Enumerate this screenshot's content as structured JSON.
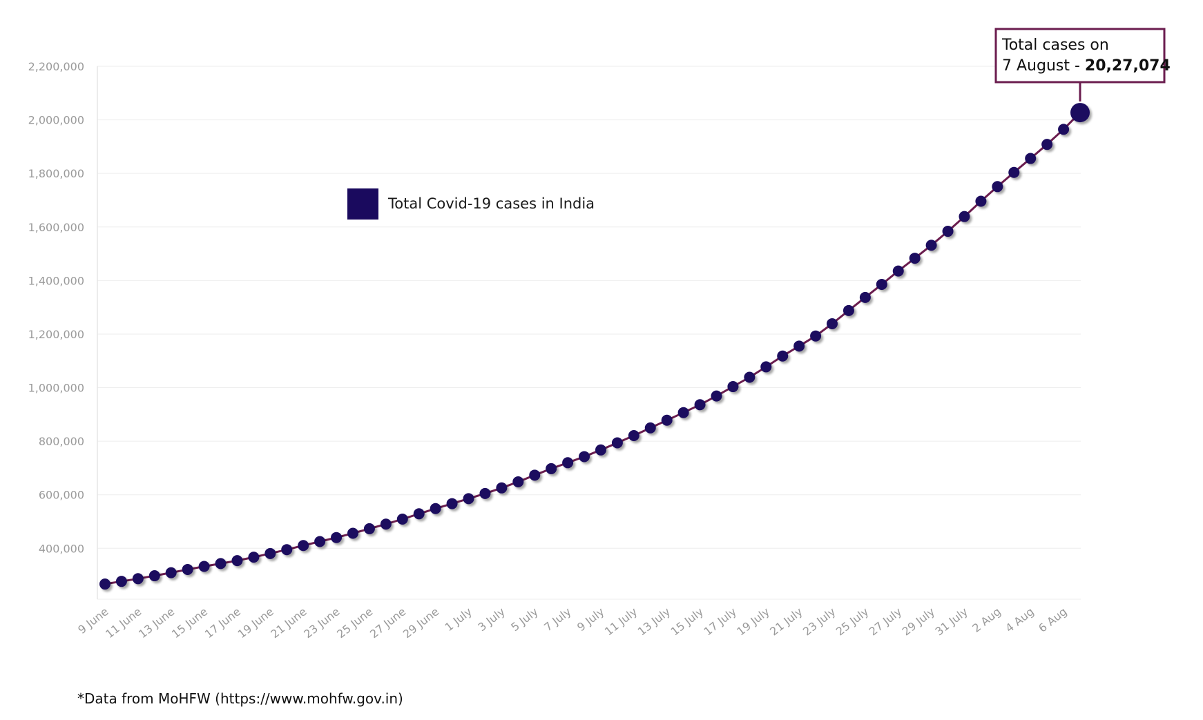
{
  "chart_data": {
    "type": "line",
    "title": "",
    "xlabel": "",
    "ylabel": "",
    "series": [
      {
        "name": "Total Covid-19 cases in India",
        "values": [
          266598,
          276583,
          286579,
          297535,
          308993,
          320922,
          332424,
          343091,
          354065,
          366946,
          380532,
          395048,
          410461,
          425282,
          440215,
          456183,
          473105,
          490401,
          508953,
          528859,
          548318,
          566840,
          585493,
          604641,
          625544,
          648315,
          673165,
          697413,
          719665,
          742417,
          767296,
          793802,
          820916,
          849553,
          878254,
          906752,
          936181,
          968876,
          1003832,
          1038716,
          1077618,
          1118043,
          1155191,
          1192915,
          1238635,
          1287945,
          1336861,
          1385522,
          1435453,
          1483156,
          1531669,
          1583792,
          1638870,
          1695988,
          1750723,
          1803695,
          1855745,
          1908254,
          1964536,
          2027074
        ]
      }
    ],
    "x_tick_labels": [
      "9 June",
      "11 June",
      "13 June",
      "15 June",
      "17 June",
      "19 June",
      "21 June",
      "23 June",
      "25 June",
      "27 June",
      "29 June",
      "1 July",
      "3 July",
      "5 July",
      "7 July",
      "9 July",
      "11 July",
      "13 July",
      "15 July",
      "17 July",
      "19 July",
      "21 July",
      "23 July",
      "25 July",
      "27 July",
      "29 July",
      "31 July",
      "2 Aug",
      "4 Aug",
      "6 Aug"
    ],
    "y_tick_labels": [
      "400,000",
      "600,000",
      "800,000",
      "1,000,000",
      "1,200,000",
      "1,400,000",
      "1,600,000",
      "1,800,000",
      "2,000,000",
      "2,200,000"
    ],
    "y_ticks": [
      400000,
      600000,
      800000,
      1000000,
      1200000,
      1400000,
      1600000,
      1800000,
      2000000,
      2200000
    ],
    "ylim": [
      210000,
      2200000
    ],
    "grid": true,
    "legend_position": "top-left",
    "annotation": {
      "line1": "Total cases on",
      "line2_prefix": "7 August - ",
      "line2_value": "20,27,074",
      "position": "top-right"
    },
    "colors": {
      "marker": "#1a0a5e",
      "line": "#6b1d4f",
      "callout_border": "#6b1d4f",
      "grid": "#eeeeee",
      "tick_text": "#9a9a9a"
    }
  },
  "footer": {
    "source": "*Data from MoHFW (https://www.mohfw.gov.in)"
  }
}
